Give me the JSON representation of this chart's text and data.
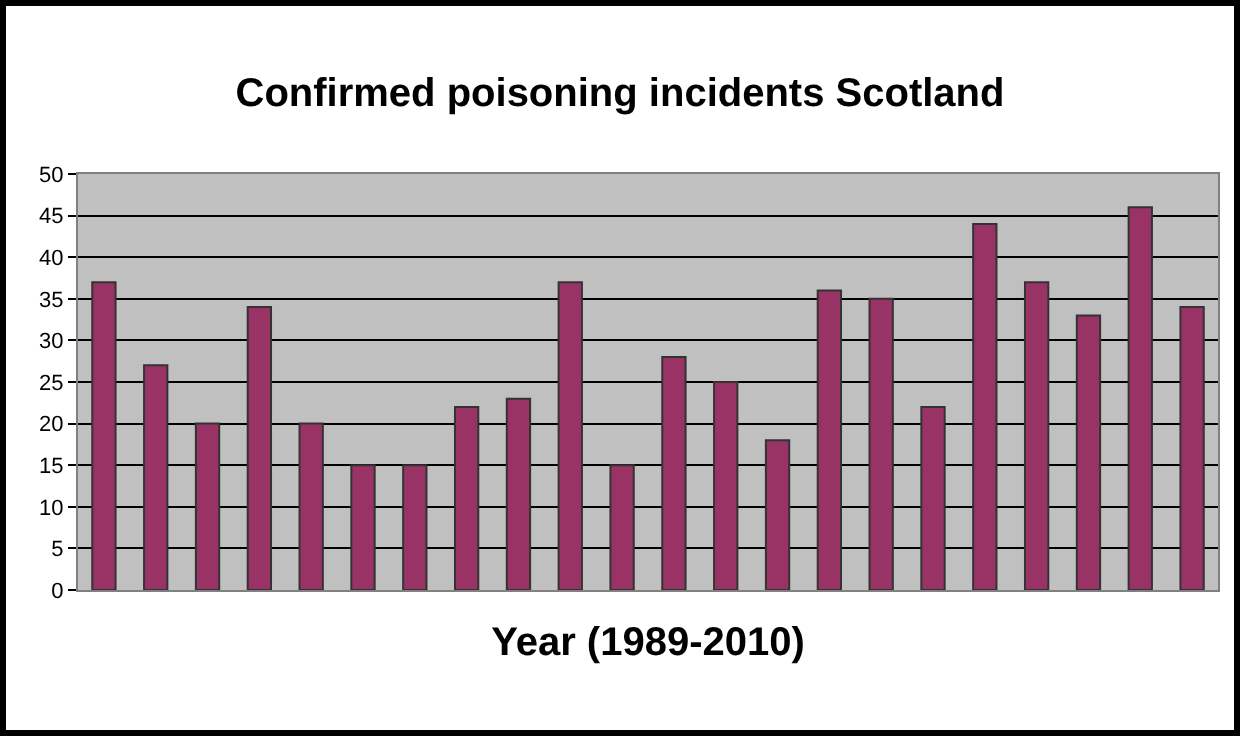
{
  "chart_data": {
    "type": "bar",
    "title": "Confirmed poisoning incidents Scotland",
    "xlabel": "Year (1989-2010)",
    "categories": [
      null,
      null,
      null,
      null,
      null,
      null,
      null,
      null,
      null,
      null,
      null,
      null,
      null,
      null,
      null,
      null,
      null,
      null,
      null,
      null,
      null,
      null
    ],
    "values": [
      37,
      27,
      20,
      34,
      20,
      15,
      15,
      22,
      23,
      37,
      15,
      28,
      25,
      18,
      36,
      35,
      22,
      44,
      37,
      33,
      46,
      34
    ],
    "color": "#993366",
    "ylim": [
      0,
      50
    ],
    "yticks": [
      0,
      5,
      10,
      15,
      20,
      25,
      30,
      35,
      40,
      45,
      50
    ],
    "grid": "y"
  }
}
